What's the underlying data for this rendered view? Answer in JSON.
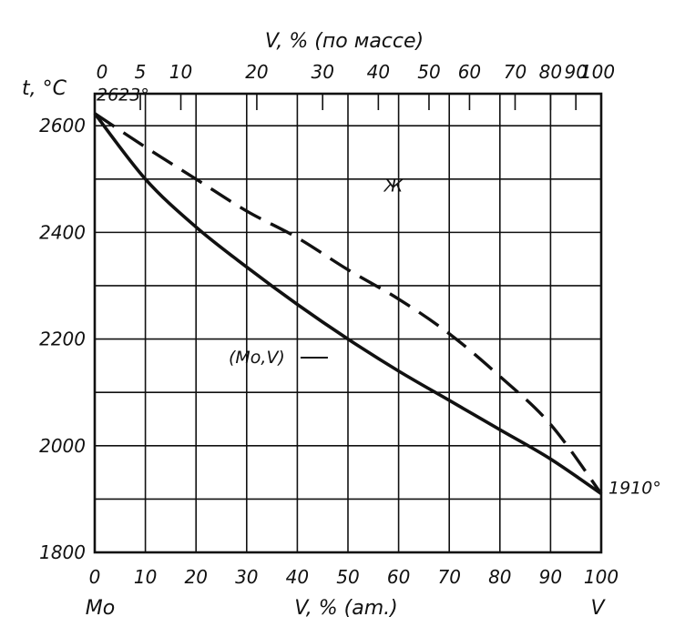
{
  "chart_data": {
    "type": "line",
    "title": "",
    "y_axis": {
      "label": "t, °C",
      "range": [
        1800,
        2660
      ],
      "ticks": [
        1800,
        2000,
        2200,
        2400,
        2600
      ],
      "tick_labels": [
        "1800",
        "2000",
        "2200",
        "2400",
        "2600"
      ],
      "grid_step": 100
    },
    "x_axis_bottom": {
      "label": "V, % (am.)",
      "range": [
        0,
        100
      ],
      "ticks": [
        0,
        10,
        20,
        30,
        40,
        50,
        60,
        70,
        80,
        90,
        100
      ],
      "tick_labels": [
        "0",
        "10",
        "20",
        "30",
        "40",
        "50",
        "60",
        "70",
        "80",
        "90",
        "100"
      ],
      "left_end_label": "Mo",
      "right_end_label": "V"
    },
    "x_axis_top": {
      "label": "V, % (по массе)",
      "tick_positions_at": [
        0,
        9,
        17,
        32,
        45,
        56,
        66,
        74,
        83,
        90,
        95,
        100
      ],
      "tick_labels": [
        "0",
        "5",
        "10",
        "20",
        "30",
        "40",
        "50",
        "60",
        "70",
        "80",
        "90",
        "100"
      ]
    },
    "grid": true,
    "series": [
      {
        "style": "dashed",
        "x": [
          0,
          10,
          20,
          30,
          40,
          50,
          60,
          70,
          80,
          90,
          100
        ],
        "y": [
          2623,
          2560,
          2500,
          2440,
          2390,
          2330,
          2275,
          2210,
          2130,
          2040,
          1910
        ]
      },
      {
        "style": "solid",
        "x": [
          0,
          10,
          20,
          30,
          40,
          50,
          60,
          70,
          80,
          90,
          100
        ],
        "y": [
          2623,
          2500,
          2410,
          2335,
          2265,
          2200,
          2140,
          2085,
          2030,
          1975,
          1910
        ]
      }
    ],
    "annotations": [
      {
        "text": "2623°",
        "x": 0,
        "y": 2623
      },
      {
        "text": "1910°",
        "x": 100,
        "y": 1910
      },
      {
        "text": "Ж",
        "x": 59,
        "y": 2490
      },
      {
        "text": "(Mo,V)",
        "x": 32,
        "y": 2155
      }
    ]
  }
}
